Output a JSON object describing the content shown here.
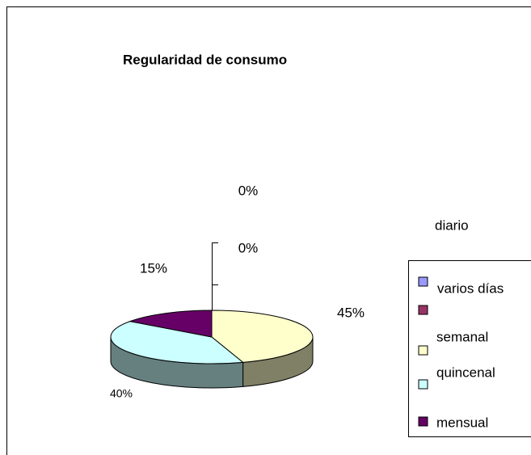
{
  "chart_data": {
    "type": "pie",
    "title": "Regularidad de consumo",
    "categories": [
      "diario",
      "varios días",
      "semanal",
      "quincenal",
      "mensual"
    ],
    "values": [
      0,
      0,
      45,
      40,
      15
    ],
    "value_labels": [
      "0%",
      "0%",
      "45%",
      "40%",
      "15%"
    ],
    "colors": [
      "#9999FF",
      "#993366",
      "#FFFFCC",
      "#CCFFFF",
      "#660066"
    ],
    "legend": "right"
  }
}
